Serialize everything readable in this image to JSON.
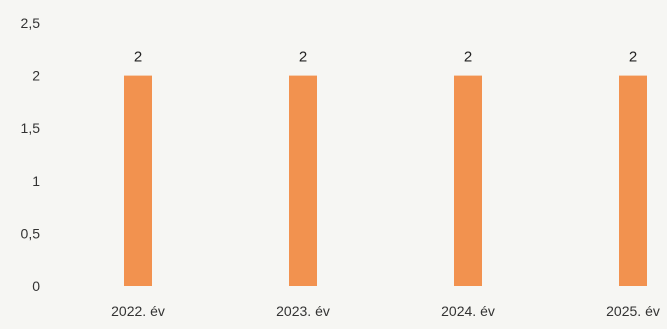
{
  "chart_data": {
    "type": "bar",
    "categories": [
      "2022. év",
      "2023. év",
      "2024. év",
      "2025. év"
    ],
    "values": [
      2,
      2,
      2,
      2
    ],
    "data_labels": [
      "2",
      "2",
      "2",
      "2"
    ],
    "title": "",
    "xlabel": "",
    "ylabel": "",
    "ylim": [
      0,
      2.5
    ],
    "y_ticks": [
      "0",
      "0,5",
      "1",
      "1,5",
      "2",
      "2,5"
    ],
    "grid": false,
    "legend": "none",
    "bar_color": "#f2924f"
  }
}
